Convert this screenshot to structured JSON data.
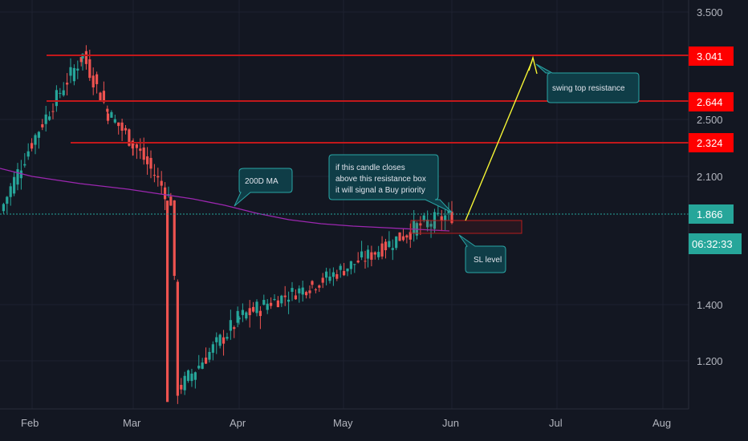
{
  "chart_data": {
    "type": "candlestick",
    "x_axis": {
      "tick_labels": [
        "Feb",
        "Mar",
        "Apr",
        "May",
        "Jun",
        "Jul",
        "Aug"
      ]
    },
    "y_axis": {
      "tick_labels": [
        3.5,
        2.5,
        2.1,
        1.4,
        1.2
      ],
      "range": [
        1.05,
        3.6
      ]
    },
    "price_levels": {
      "resistance_levels": [
        3.041,
        2.644,
        2.324
      ],
      "current_price": 1.866,
      "countdown": "06:32:33"
    },
    "key_points": [
      {
        "date": "Feb-15",
        "price": 3.041
      },
      {
        "date": "Feb-22",
        "price": 2.55
      },
      {
        "date": "Mar-01",
        "price": 2.32
      },
      {
        "date": "Mar-12",
        "price": 1.95
      },
      {
        "date": "Mar-14",
        "price": 1.1
      },
      {
        "date": "Apr-01",
        "price": 1.35
      },
      {
        "date": "Apr-22",
        "price": 1.5
      },
      {
        "date": "May-08",
        "price": 1.65
      },
      {
        "date": "May-22",
        "price": 1.8
      },
      {
        "date": "Jun-01",
        "price": 1.866
      }
    ],
    "moving_average": {
      "label": "200D MA"
    },
    "annotations": [
      {
        "text": "200D MA"
      },
      {
        "text": "if this candle closes above this resistance box it will signal a Buy priority"
      },
      {
        "text": "swing top resistance"
      },
      {
        "text": "SL level"
      }
    ],
    "colors": {
      "background": "#131722",
      "up_candle": "#26a69a",
      "down_candle": "#ef5350",
      "resistance_line": "#c2181b",
      "resistance_tag": "#ff0000",
      "moving_average": "#9c27b0",
      "current_price_tag": "#26a69a",
      "projection_arrow": "#f5f534",
      "callout_fill": "#0f3d47",
      "callout_border": "#2aa6a6",
      "resistance_box": "#b71c1c"
    }
  },
  "annotations_text": {
    "ma_label": "200D MA",
    "buy_line1": "if this candle closes",
    "buy_line2": "above this resistance box",
    "buy_line3": "it will signal a Buy priority",
    "swing_label": "swing top resistance",
    "sl_label": "SL level"
  },
  "axis_labels": {
    "months": [
      "Feb",
      "Mar",
      "Apr",
      "May",
      "Jun",
      "Jul",
      "Aug"
    ],
    "prices": [
      "3.500",
      "2.500",
      "2.100",
      "1.400",
      "1.200"
    ],
    "tags": [
      "3.041",
      "2.644",
      "2.324",
      "1.866"
    ],
    "countdown": "06:32:33"
  }
}
